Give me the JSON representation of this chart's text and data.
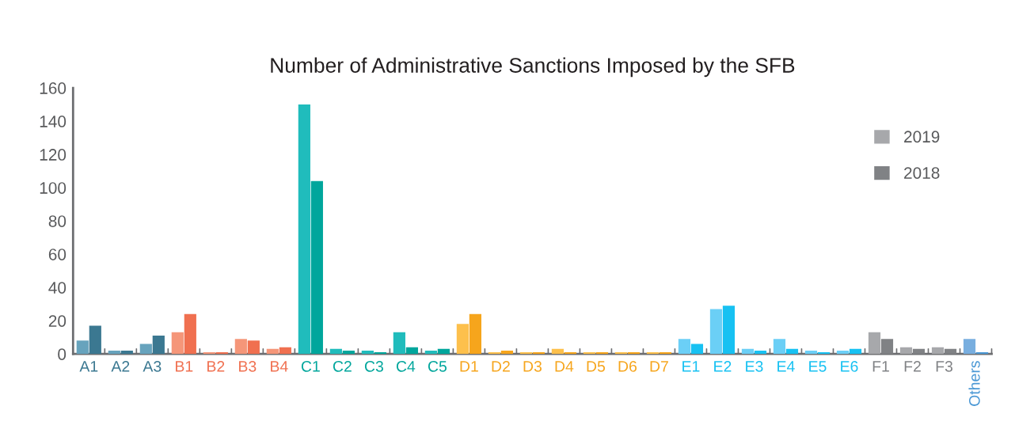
{
  "chart_data": {
    "type": "bar",
    "title": "Number of Administrative Sanctions Imposed by the SFB",
    "categories": [
      "A1",
      "A2",
      "A3",
      "B1",
      "B2",
      "B3",
      "B4",
      "C1",
      "C2",
      "C3",
      "C4",
      "C5",
      "D1",
      "D2",
      "D3",
      "D4",
      "D5",
      "D6",
      "D7",
      "E1",
      "E2",
      "E3",
      "E4",
      "E5",
      "E6",
      "F1",
      "F2",
      "F3",
      "Others"
    ],
    "series": [
      {
        "name": "2019",
        "color": "#a7a8ab",
        "values": [
          8,
          2,
          6,
          13,
          1,
          9,
          3,
          150,
          3,
          2,
          13,
          2,
          18,
          1,
          1,
          3,
          1,
          1,
          1,
          9,
          27,
          3,
          9,
          2,
          2,
          13,
          4,
          4,
          9
        ],
        "colors": [
          "#67a3bd",
          "#67a3bd",
          "#67a3bd",
          "#f59679",
          "#f59679",
          "#f59679",
          "#f59679",
          "#20bcbc",
          "#20bcbc",
          "#20bcbc",
          "#20bcbc",
          "#20bcbc",
          "#fdc04c",
          "#fdc04c",
          "#fdc04c",
          "#fdc04c",
          "#fdc04c",
          "#fdc04c",
          "#fdc04c",
          "#6bcff6",
          "#6bcff6",
          "#6bcff6",
          "#6bcff6",
          "#6bcff6",
          "#6bcff6",
          "#a7a8ab",
          "#a7a8ab",
          "#a7a8ab",
          "#78aedf"
        ]
      },
      {
        "name": "2018",
        "color": "#808285",
        "values": [
          17,
          2,
          11,
          24,
          1,
          8,
          4,
          104,
          2,
          1,
          4,
          3,
          24,
          2,
          1,
          1,
          1,
          1,
          1,
          6,
          29,
          2,
          3,
          1,
          3,
          9,
          3,
          3,
          1
        ],
        "colors": [
          "#3b7891",
          "#3b7891",
          "#3b7891",
          "#f07050",
          "#f07050",
          "#f07050",
          "#f07050",
          "#00a69c",
          "#00a69c",
          "#00a69c",
          "#00a69c",
          "#00a69c",
          "#f6a51c",
          "#f6a51c",
          "#f6a51c",
          "#f6a51c",
          "#f6a51c",
          "#f6a51c",
          "#f6a51c",
          "#17c1f2",
          "#17c1f2",
          "#17c1f2",
          "#17c1f2",
          "#17c1f2",
          "#17c1f2",
          "#808285",
          "#808285",
          "#808285",
          "#4a98d5"
        ]
      }
    ],
    "ylim": [
      0,
      160
    ],
    "yticks": [
      0,
      20,
      40,
      60,
      80,
      100,
      120,
      140,
      160
    ],
    "grid": false,
    "legend": "top right"
  }
}
